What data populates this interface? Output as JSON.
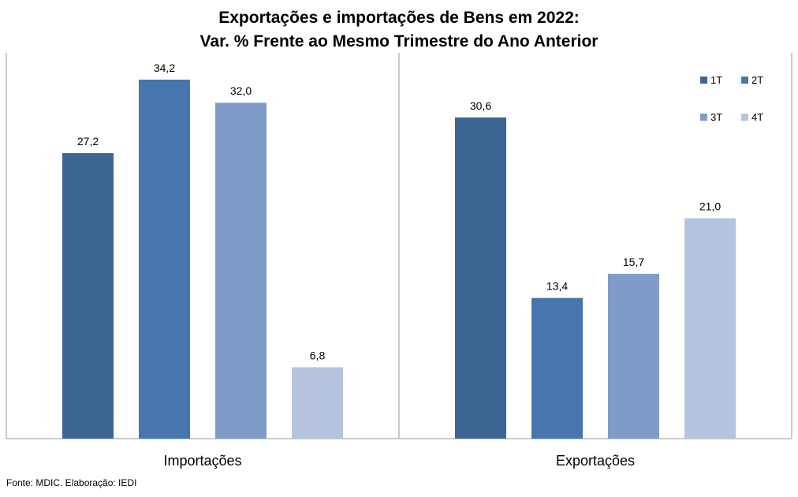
{
  "chart_data": {
    "type": "bar",
    "title_line1": "Exportações e importações de Bens em 2022:",
    "title_line2": "Var. % Frente ao Mesmo Trimestre do Ano Anterior",
    "categories": [
      "Importações",
      "Exportações"
    ],
    "series": [
      {
        "name": "1T",
        "values": [
          27.2,
          30.6
        ],
        "labels": [
          "27,2",
          "30,6"
        ],
        "color": "#3d6594"
      },
      {
        "name": "2T",
        "values": [
          34.2,
          13.4
        ],
        "labels": [
          "34,2",
          "13,4"
        ],
        "color": "#4775ad"
      },
      {
        "name": "3T",
        "values": [
          32.0,
          15.7
        ],
        "labels": [
          "32,0",
          "15,7"
        ],
        "color": "#7f9cc8"
      },
      {
        "name": "4T",
        "values": [
          6.8,
          21.0
        ],
        "labels": [
          "6,8",
          "21,0"
        ],
        "color": "#b5c4de"
      }
    ],
    "ylim": [
      0,
      36
    ],
    "grid": false,
    "legend_position": "top-right",
    "source": "Fonte: MDIC. Elaboração: IEDI"
  }
}
